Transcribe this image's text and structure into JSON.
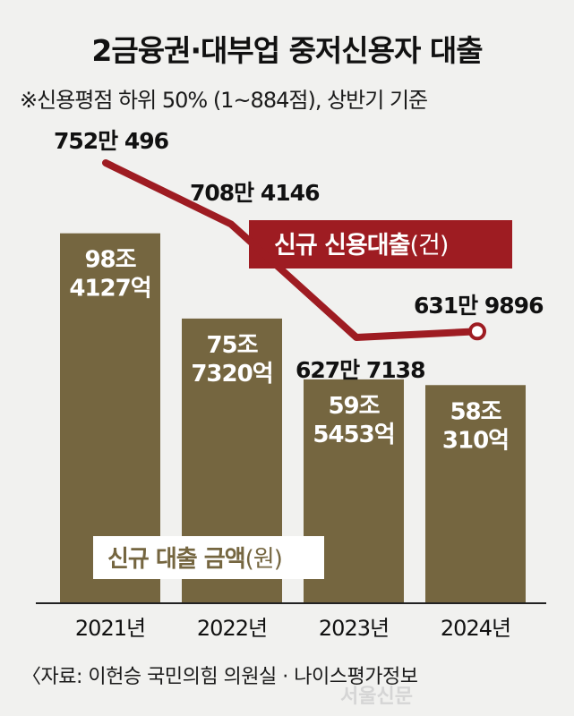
{
  "header": {
    "title": "2금융권·대부업 중저신용자 대출",
    "subtitle": "※신용평점 하위 50% (1~884점), 상반기 기준"
  },
  "chart_data": {
    "type": "bar",
    "categories": [
      "2021년",
      "2022년",
      "2023년",
      "2024년"
    ],
    "series": [
      {
        "name": "신규 대출 금액",
        "unit": "원",
        "kind": "bar",
        "values": [
          98.4127,
          75.732,
          59.5453,
          58.031
        ],
        "data_labels": [
          [
            "98조",
            "4127억"
          ],
          [
            "75조",
            "7320억"
          ],
          [
            "59조",
            "5453억"
          ],
          [
            "58조",
            "310억"
          ]
        ]
      },
      {
        "name": "신규 신용대출",
        "unit": "건",
        "kind": "line",
        "values": [
          7520496,
          7084146,
          6277138,
          6319896
        ],
        "data_labels": [
          "752만 496",
          "708만 4146",
          "627만 7138",
          "631만 9896"
        ]
      }
    ],
    "colors": {
      "bar": "#756640",
      "line": "#9e1c22",
      "legend_bg": "#ffffff"
    }
  },
  "source": "〈자료: 이헌승 국민의힘 의원실 · 나이스평가정보",
  "watermark": "서울신문"
}
